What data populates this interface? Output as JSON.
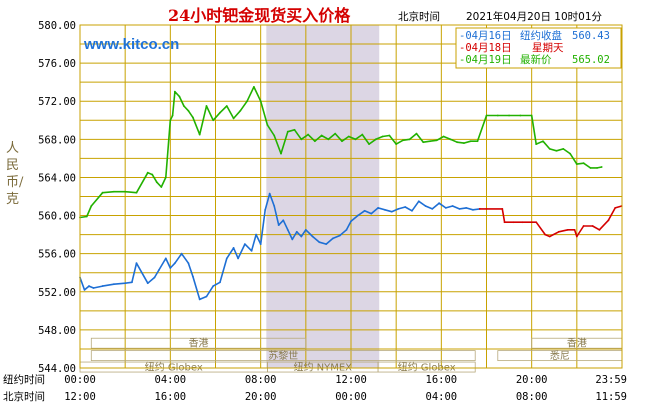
{
  "page": {
    "title": "24小时钯金现货买入价格",
    "timezone_label": "北京时间",
    "timestamp": "2021年04月20日 10时01分",
    "watermark": "www.kitco.cn",
    "ylabel": "人民币/克"
  },
  "colors": {
    "grid": "#c8a200",
    "series_0416": "#1e6fd4",
    "series_0418": "#d40000",
    "series_0419": "#22b100",
    "band_fill": "#d9d3e2",
    "title": "#d40000"
  },
  "legend": [
    {
      "date": "04月16日",
      "label": "纽约收盘",
      "value": "560.43",
      "color": "#1e6fd4"
    },
    {
      "date": "04月18日",
      "label": "星期天",
      "value": "",
      "color": "#d40000"
    },
    {
      "date": "04月19日",
      "label": "最新价",
      "value": "565.02",
      "color": "#22b100"
    }
  ],
  "axis_rows": {
    "ny_label": "纽约时间",
    "bj_label": "北京时间",
    "ny_ticks": [
      "00:00",
      "04:00",
      "08:00",
      "12:00",
      "16:00",
      "20:00",
      "23:59"
    ],
    "bj_ticks": [
      "12:00",
      "16:00",
      "20:00",
      "00:00",
      "04:00",
      "08:00",
      "11:59"
    ]
  },
  "market_labels": {
    "hk": "香港",
    "paris": "苏黎世",
    "globex": "纽约 Globex",
    "nymex": "纽约 NYMEX",
    "hk2": "香港",
    "london": "悉尼"
  },
  "chart_data": {
    "type": "line",
    "title": "24小时钯金现货买入价格",
    "ylabel": "人民币/克",
    "x_unit": "hours (New York time)",
    "xlim": [
      0,
      24
    ],
    "ylim": [
      544,
      580
    ],
    "yticks": [
      "580.00",
      "576.00",
      "572.00",
      "568.00",
      "564.00",
      "560.00",
      "556.00",
      "552.00",
      "548.00",
      "544.00"
    ],
    "grid": true,
    "shaded_region": [
      8.25,
      13.25
    ],
    "series": [
      {
        "name": "04月16日",
        "color": "#1e6fd4",
        "x": [
          0,
          0.2,
          0.4,
          0.6,
          1.0,
          1.5,
          2.0,
          2.3,
          2.5,
          3.0,
          3.3,
          3.5,
          3.8,
          4.0,
          4.2,
          4.5,
          4.8,
          5.0,
          5.3,
          5.6,
          5.9,
          6.2,
          6.5,
          6.8,
          7.0,
          7.3,
          7.6,
          7.8,
          8.0,
          8.2,
          8.4,
          8.6,
          8.8,
          9.0,
          9.2,
          9.4,
          9.6,
          9.8,
          10.0,
          10.3,
          10.6,
          10.9,
          11.2,
          11.5,
          11.8,
          12.0,
          12.3,
          12.6,
          12.9,
          13.2,
          13.5,
          13.8,
          14.1,
          14.4,
          14.7,
          15.0,
          15.3,
          15.6,
          15.9,
          16.2,
          16.5,
          16.8,
          17.1,
          17.4,
          17.7
        ],
        "values": [
          553.5,
          552.2,
          552.6,
          552.4,
          552.6,
          552.8,
          552.9,
          553.0,
          555.0,
          552.9,
          553.5,
          554.3,
          555.5,
          554.5,
          555.0,
          556.0,
          555.0,
          553.6,
          551.2,
          551.5,
          552.6,
          553.0,
          555.5,
          556.6,
          555.5,
          557.0,
          556.3,
          558.0,
          557.0,
          560.6,
          562.3,
          561.0,
          559.0,
          559.5,
          558.5,
          557.5,
          558.3,
          557.8,
          558.5,
          557.8,
          557.2,
          557.0,
          557.6,
          557.9,
          558.5,
          559.4,
          560.0,
          560.5,
          560.2,
          560.8,
          560.6,
          560.4,
          560.7,
          560.9,
          560.5,
          561.5,
          561.0,
          560.7,
          561.3,
          560.8,
          561.0,
          560.7,
          560.8,
          560.6,
          560.7
        ]
      },
      {
        "name": "04月18日",
        "color": "#d40000",
        "x": [
          17.7,
          18.0,
          18.7,
          18.8,
          19.2,
          19.6,
          20.2,
          20.6,
          20.8,
          21.2,
          21.6,
          21.9,
          22.0,
          22.3,
          22.7,
          23.0,
          23.4,
          23.7,
          23.99
        ],
        "values": [
          560.7,
          560.7,
          560.7,
          559.3,
          559.3,
          559.3,
          559.3,
          558.0,
          557.8,
          558.3,
          558.5,
          558.5,
          557.8,
          558.9,
          558.9,
          558.5,
          559.5,
          560.8,
          561.0
        ]
      },
      {
        "name": "04月19日",
        "color": "#22b100",
        "x": [
          0,
          0.3,
          0.5,
          1.0,
          1.5,
          2.0,
          2.5,
          3.0,
          3.2,
          3.4,
          3.6,
          3.8,
          4.0,
          4.1,
          4.2,
          4.4,
          4.6,
          4.8,
          5.0,
          5.3,
          5.6,
          5.9,
          6.2,
          6.5,
          6.8,
          7.1,
          7.4,
          7.7,
          8.0,
          8.3,
          8.6,
          8.9,
          9.2,
          9.5,
          9.8,
          10.1,
          10.4,
          10.7,
          11.0,
          11.3,
          11.6,
          11.9,
          12.2,
          12.5,
          12.8,
          13.1,
          13.4,
          13.7,
          14.0,
          14.3,
          14.6,
          14.9,
          15.2,
          15.5,
          15.8,
          16.1,
          16.4,
          16.7,
          17.0,
          17.3,
          17.6,
          18.0,
          18.5,
          19.0,
          19.5,
          20.0,
          20.2,
          20.5,
          20.8,
          21.1,
          21.4,
          21.7,
          22.0,
          22.3,
          22.6,
          22.9,
          23.1
        ],
        "values": [
          559.8,
          559.9,
          561.0,
          562.4,
          562.5,
          562.5,
          562.4,
          564.5,
          564.3,
          563.5,
          563.0,
          564.0,
          570.0,
          570.5,
          573.0,
          572.5,
          571.5,
          571.0,
          570.3,
          568.5,
          571.5,
          570.0,
          570.8,
          571.5,
          570.2,
          571.0,
          572.0,
          573.5,
          572.0,
          569.5,
          568.4,
          566.5,
          568.8,
          569.0,
          568.0,
          568.5,
          567.8,
          568.4,
          568.0,
          568.6,
          567.8,
          568.3,
          568.0,
          568.5,
          567.5,
          568.0,
          568.3,
          568.4,
          567.5,
          567.9,
          568.0,
          568.6,
          567.7,
          567.8,
          567.9,
          568.3,
          568.0,
          567.7,
          567.6,
          567.8,
          567.8,
          570.5,
          570.5,
          570.5,
          570.5,
          570.5,
          567.5,
          567.8,
          567.0,
          566.8,
          567.0,
          566.5,
          565.4,
          565.5,
          565.0,
          565.0,
          565.1
        ]
      }
    ]
  }
}
